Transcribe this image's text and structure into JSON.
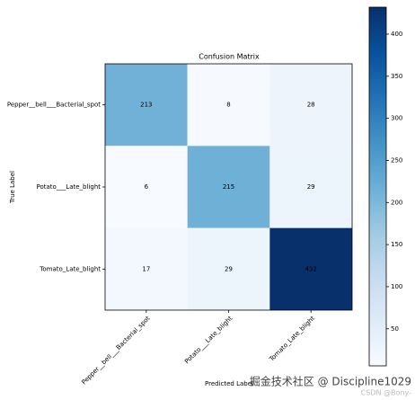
{
  "chart_data": {
    "type": "heatmap",
    "title": "Confusion Matrix",
    "x_label": "Predicted Label",
    "y_label": "True Label",
    "columns": [
      "Pepper__bell___Bacterial_spot",
      "Potato___Late_blight",
      "Tomato_Late_blight"
    ],
    "rows": [
      "Pepper__bell___Bacterial_spot",
      "Potato___Late_blight",
      "Tomato_Late_blight"
    ],
    "values": [
      [
        213,
        8,
        28
      ],
      [
        6,
        215,
        29
      ],
      [
        17,
        29,
        432
      ]
    ],
    "cmap": "Blues",
    "clim": [
      6,
      432
    ],
    "cticks": [
      50,
      100,
      150,
      200,
      250,
      300,
      350,
      400
    ]
  },
  "watermarks": [
    "掘金技术社区 @ Discipline1029",
    "CSDN @Bony-"
  ]
}
